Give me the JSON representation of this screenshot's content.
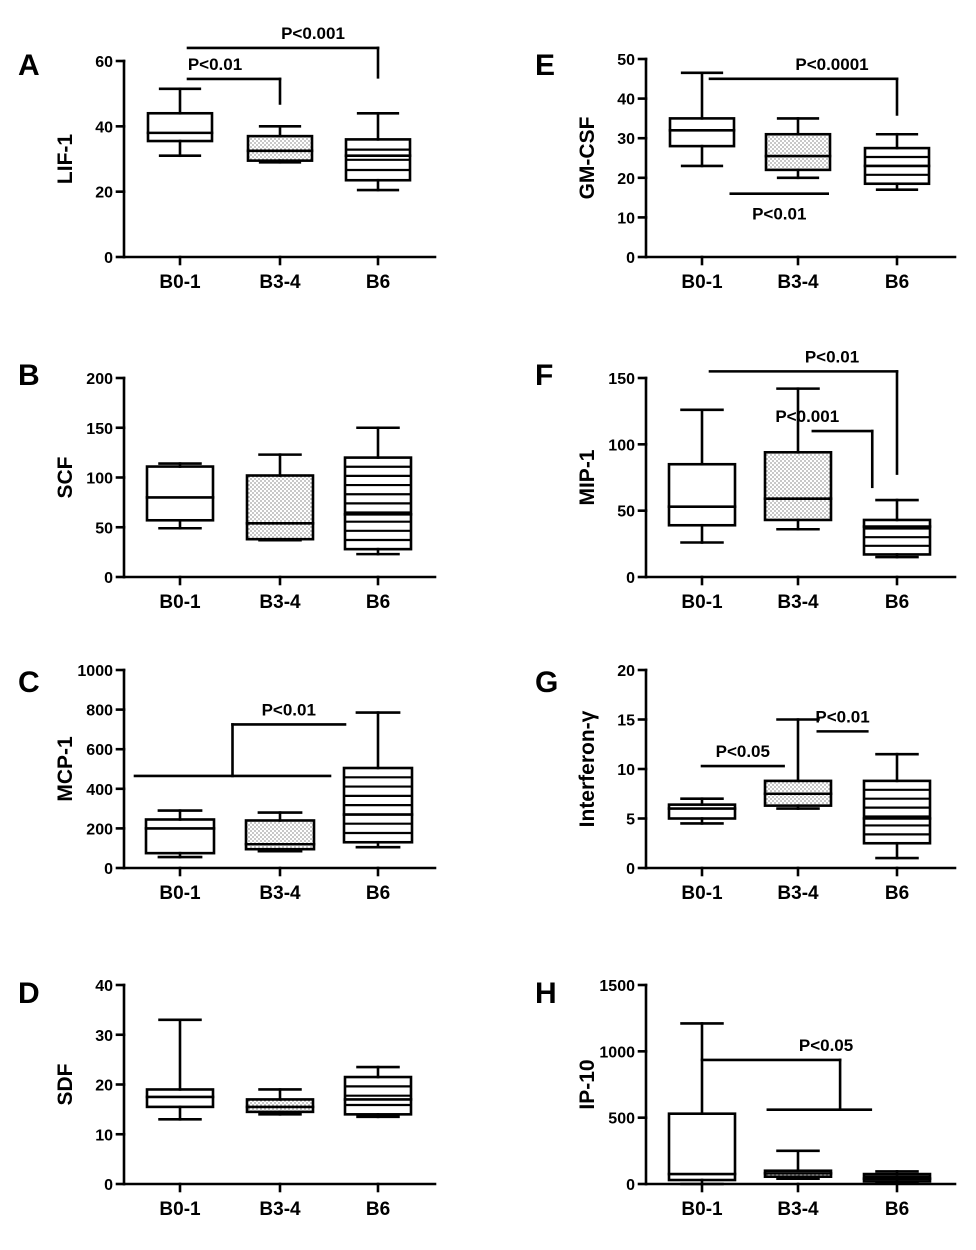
{
  "figure": {
    "categories": [
      "B0-1",
      "B3-4",
      "B6"
    ],
    "fill_patterns": [
      "none",
      "dots",
      "stripes"
    ],
    "colors": {
      "ink": "#000000",
      "background": "#ffffff"
    }
  },
  "chart_data": [
    {
      "panel": "A",
      "type": "box",
      "ylabel": "LIF-1",
      "categories": [
        "B0-1",
        "B3-4",
        "B6"
      ],
      "ylim": [
        0,
        60
      ],
      "yticks": [
        0,
        20,
        40,
        60
      ],
      "boxes": [
        {
          "min": 31,
          "q1": 35.5,
          "median": 38,
          "q3": 44,
          "max": 51.5
        },
        {
          "min": 29,
          "q1": 29.5,
          "median": 32.5,
          "q3": 37,
          "max": 40
        },
        {
          "min": 20.5,
          "q1": 23.5,
          "median": 31,
          "q3": 36,
          "max": 44
        }
      ],
      "annotations": [
        {
          "label": "P<0.01",
          "from": 0,
          "to": 1,
          "y": 54.5,
          "tick_to": 47
        },
        {
          "label": "P<0.001",
          "from": 0,
          "to": 2,
          "y": 64,
          "tick_to": 55
        }
      ]
    },
    {
      "panel": "B",
      "type": "box",
      "ylabel": "SCF",
      "categories": [
        "B0-1",
        "B3-4",
        "B6"
      ],
      "ylim": [
        0,
        200
      ],
      "yticks": [
        0,
        50,
        100,
        150,
        200
      ],
      "boxes": [
        {
          "min": 49,
          "q1": 57,
          "median": 80,
          "q3": 111,
          "max": 114
        },
        {
          "min": 37,
          "q1": 38,
          "median": 54,
          "q3": 102,
          "max": 123
        },
        {
          "min": 23,
          "q1": 28,
          "median": 63,
          "q3": 120,
          "max": 150
        }
      ],
      "annotations": []
    },
    {
      "panel": "C",
      "type": "box",
      "ylabel": "MCP-1",
      "categories": [
        "B0-1",
        "B3-4",
        "B6"
      ],
      "ylim": [
        0,
        1000
      ],
      "yticks": [
        0,
        200,
        400,
        600,
        800,
        1000
      ],
      "boxes": [
        {
          "min": 55,
          "q1": 75,
          "median": 200,
          "q3": 245,
          "max": 290
        },
        {
          "min": 85,
          "q1": 95,
          "median": 120,
          "q3": 240,
          "max": 280
        },
        {
          "min": 105,
          "q1": 130,
          "median": 270,
          "q3": 505,
          "max": 785
        }
      ],
      "annotations": [
        {
          "label": "P<0.01",
          "group_span": [
            0,
            1
          ],
          "group_y": 465,
          "to": 2,
          "y": 725
        }
      ]
    },
    {
      "panel": "D",
      "type": "box",
      "ylabel": "SDF",
      "categories": [
        "B0-1",
        "B3-4",
        "B6"
      ],
      "ylim": [
        0,
        40
      ],
      "yticks": [
        0,
        10,
        20,
        30,
        40
      ],
      "boxes": [
        {
          "min": 13,
          "q1": 15.5,
          "median": 17.5,
          "q3": 19,
          "max": 33
        },
        {
          "min": 14,
          "q1": 14.5,
          "median": 15.5,
          "q3": 17,
          "max": 19
        },
        {
          "min": 13.5,
          "q1": 14,
          "median": 17,
          "q3": 21.5,
          "max": 23.5
        }
      ],
      "annotations": []
    },
    {
      "panel": "E",
      "type": "box",
      "ylabel": "GM-CSF",
      "categories": [
        "B0-1",
        "B3-4",
        "B6"
      ],
      "ylim": [
        0,
        50
      ],
      "yticks": [
        0,
        10,
        20,
        30,
        40,
        50
      ],
      "boxes": [
        {
          "min": 23,
          "q1": 28,
          "median": 32,
          "q3": 35,
          "max": 46.5
        },
        {
          "min": 20,
          "q1": 22,
          "median": 25.5,
          "q3": 31,
          "max": 35
        },
        {
          "min": 17,
          "q1": 18.5,
          "median": 23,
          "q3": 27.5,
          "max": 31
        }
      ],
      "annotations": [
        {
          "label": "P<0.0001",
          "from": 0,
          "to": 2,
          "y": 45,
          "tick_to": 36
        },
        {
          "label": "P<0.01",
          "line_from": 0.3,
          "line_to": 1.3,
          "y": 16,
          "label_below": true
        }
      ]
    },
    {
      "panel": "F",
      "type": "box",
      "ylabel": "MIP-1",
      "categories": [
        "B0-1",
        "B3-4",
        "B6"
      ],
      "ylim": [
        0,
        150
      ],
      "yticks": [
        0,
        50,
        100,
        150
      ],
      "boxes": [
        {
          "min": 26,
          "q1": 39,
          "median": 53,
          "q3": 85,
          "max": 126
        },
        {
          "min": 36,
          "q1": 43,
          "median": 59,
          "q3": 94,
          "max": 142
        },
        {
          "min": 15,
          "q1": 17,
          "median": 38,
          "q3": 43,
          "max": 58
        }
      ],
      "annotations": [
        {
          "label": "P<0.01",
          "from": 0,
          "to": 2,
          "y": 155,
          "tick_to": 78
        },
        {
          "label": "P<0.001",
          "line_from": 1.15,
          "line_to": 1.75,
          "y": 110,
          "tick_to": 68
        }
      ]
    },
    {
      "panel": "G",
      "type": "box",
      "ylabel": "Interferon-γ",
      "categories": [
        "B0-1",
        "B3-4",
        "B6"
      ],
      "ylim": [
        0,
        20
      ],
      "yticks": [
        0,
        5,
        10,
        15,
        20
      ],
      "boxes": [
        {
          "min": 4.5,
          "q1": 5,
          "median": 6,
          "q3": 6.4,
          "max": 7
        },
        {
          "min": 6,
          "q1": 6.3,
          "median": 7.5,
          "q3": 8.8,
          "max": 15
        },
        {
          "min": 1,
          "q1": 2.5,
          "median": 5,
          "q3": 8.8,
          "max": 11.5
        }
      ],
      "annotations": [
        {
          "label": "P<0.05",
          "line_from": 0,
          "line_to": 0.85,
          "y": 10.3
        },
        {
          "label": "P<0.01",
          "line_from": 1.2,
          "line_to": 1.7,
          "y": 13.8
        }
      ]
    },
    {
      "panel": "H",
      "type": "box",
      "ylabel": "IP-10",
      "categories": [
        "B0-1",
        "B3-4",
        "B6"
      ],
      "ylim": [
        0,
        1500
      ],
      "yticks": [
        0,
        500,
        1000,
        1500
      ],
      "boxes": [
        {
          "min": 0,
          "q1": 30,
          "median": 75,
          "q3": 530,
          "max": 1210
        },
        {
          "min": 40,
          "q1": 55,
          "median": 80,
          "q3": 100,
          "max": 250
        },
        {
          "min": 5,
          "q1": 20,
          "median": 40,
          "q3": 75,
          "max": 95
        }
      ],
      "annotations": [
        {
          "label": "P<0.05",
          "from": 0,
          "to_x": 1.9,
          "y": 935,
          "group_span": [
            1.15,
            2.3
          ],
          "group_y": 560
        }
      ]
    }
  ]
}
